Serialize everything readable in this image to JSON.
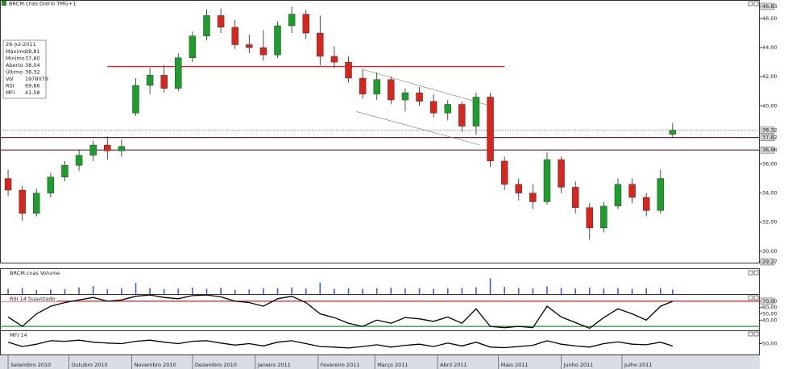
{
  "chart_data": [
    {
      "type": "candlestick",
      "title": "BRCM.cnas Diário TMG+1",
      "x": [
        "2010-09-01",
        "2010-09-08",
        "2010-09-15",
        "2010-09-22",
        "2010-09-29",
        "2010-10-06",
        "2010-10-13",
        "2010-10-20",
        "2010-10-27",
        "2010-11-03",
        "2010-11-10",
        "2010-11-17",
        "2010-11-24",
        "2010-12-01",
        "2010-12-08",
        "2010-12-15",
        "2010-12-22",
        "2010-12-29",
        "2011-01-05",
        "2011-01-12",
        "2011-01-19",
        "2011-01-26",
        "2011-02-02",
        "2011-02-09",
        "2011-02-16",
        "2011-02-23",
        "2011-03-02",
        "2011-03-09",
        "2011-03-16",
        "2011-03-23",
        "2011-03-30",
        "2011-04-06",
        "2011-04-13",
        "2011-04-20",
        "2011-04-27",
        "2011-05-04",
        "2011-05-11",
        "2011-05-18",
        "2011-05-25",
        "2011-06-01",
        "2011-06-08",
        "2011-06-15",
        "2011-06-22",
        "2011-06-29",
        "2011-07-06",
        "2011-07-13",
        "2011-07-20",
        "2011-07-26"
      ],
      "open": [
        35.0,
        34.2,
        32.6,
        34.0,
        35.1,
        35.9,
        36.6,
        37.3,
        36.9,
        39.5,
        41.4,
        42.1,
        41.2,
        43.3,
        44.8,
        46.2,
        45.4,
        44.2,
        44.0,
        43.5,
        45.5,
        46.3,
        45.0,
        43.4,
        43.0,
        41.9,
        40.8,
        41.8,
        40.4,
        40.9,
        40.3,
        39.5,
        40.1,
        38.6,
        40.6,
        36.2,
        34.6,
        34.0,
        33.4,
        36.3,
        34.4,
        33.0,
        31.6,
        33.1,
        34.6,
        33.7,
        32.8,
        38.04
      ],
      "high": [
        35.6,
        34.5,
        34.3,
        35.4,
        36.2,
        37.0,
        37.6,
        37.9,
        37.7,
        41.9,
        42.6,
        42.8,
        43.6,
        45.1,
        46.6,
        46.7,
        45.9,
        44.9,
        45.2,
        45.8,
        46.83,
        46.6,
        46.2,
        44.1,
        43.4,
        42.5,
        42.3,
        42.0,
        41.2,
        41.3,
        40.8,
        40.4,
        40.3,
        40.9,
        40.9,
        36.5,
        35.0,
        34.6,
        36.8,
        36.5,
        34.8,
        33.3,
        33.4,
        35.0,
        35.0,
        34.0,
        35.6,
        38.81
      ],
      "low": [
        33.8,
        32.1,
        32.4,
        33.7,
        34.8,
        35.5,
        36.2,
        36.3,
        36.5,
        39.3,
        40.8,
        40.9,
        41.0,
        43.0,
        44.5,
        45.0,
        43.9,
        43.6,
        43.1,
        43.3,
        45.0,
        44.6,
        42.8,
        42.6,
        41.6,
        40.5,
        40.4,
        40.1,
        39.6,
        40.0,
        39.2,
        39.0,
        38.2,
        38.0,
        35.8,
        34.2,
        33.5,
        32.9,
        33.2,
        34.0,
        32.6,
        30.8,
        31.3,
        32.9,
        33.3,
        32.4,
        32.6,
        37.8
      ],
      "close": [
        34.2,
        32.6,
        34.0,
        35.1,
        35.9,
        36.6,
        37.3,
        36.9,
        37.2,
        41.4,
        42.1,
        41.2,
        43.3,
        44.8,
        46.2,
        45.4,
        44.2,
        44.0,
        43.5,
        45.5,
        46.3,
        45.0,
        43.4,
        43.0,
        41.9,
        40.8,
        41.8,
        40.4,
        40.9,
        40.3,
        39.5,
        40.1,
        38.6,
        40.6,
        36.2,
        34.6,
        34.0,
        33.4,
        36.3,
        34.4,
        33.0,
        31.6,
        33.1,
        34.6,
        33.7,
        32.8,
        35.0,
        38.32
      ],
      "up_color": "#1b9e2a",
      "down_color": "#d8261c",
      "xlim": [
        "2010-08-28",
        "2011-09-07"
      ],
      "xticks": [
        {
          "value": "2010-09-01",
          "label": "Setembro 2010"
        },
        {
          "value": "2010-10-01",
          "label": "Outubro 2010"
        },
        {
          "value": "2010-11-01",
          "label": "Novembro 2010"
        },
        {
          "value": "2010-12-01",
          "label": "Dezembro 2010"
        },
        {
          "value": "2011-01-01",
          "label": "Janeiro 2011"
        },
        {
          "value": "2011-02-01",
          "label": "Fevereiro 2011"
        },
        {
          "value": "2011-03-01",
          "label": "Março 2011"
        },
        {
          "value": "2011-04-01",
          "label": "Abril 2011"
        },
        {
          "value": "2011-05-01",
          "label": "Maio 2011"
        },
        {
          "value": "2011-06-01",
          "label": "Junho 2011"
        },
        {
          "value": "2011-07-01",
          "label": "Julho 2011"
        }
      ],
      "ylim": [
        29.27,
        46.83
      ],
      "yticks": [
        {
          "value": 29.27,
          "label": "29,27"
        },
        {
          "value": 30,
          "label": "30,00"
        },
        {
          "value": 32,
          "label": "32,00"
        },
        {
          "value": 34,
          "label": "34,00"
        },
        {
          "value": 36,
          "label": "36,00"
        },
        {
          "value": 40,
          "label": "40,00"
        },
        {
          "value": 42,
          "label": "42,00"
        },
        {
          "value": 44,
          "label": "44,00"
        },
        {
          "value": 46,
          "label": "46,00"
        },
        {
          "value": 46.83,
          "label": "46,83"
        }
      ],
      "hlines": [
        {
          "value": 38.32,
          "label": "38,32",
          "color": "#777777",
          "dash": true
        },
        {
          "value": 37.82,
          "label": "37,82",
          "color": "#6a1a4a",
          "dash": false
        },
        {
          "value": 36.96,
          "label": "36,96",
          "color": "#6a1a4a",
          "dash": false
        }
      ],
      "segments": [
        {
          "x": [
            "2010-10-20",
            "2011-05-04"
          ],
          "y": [
            42.7,
            42.7
          ],
          "color": "#e02020"
        },
        {
          "x": [
            "2011-02-23",
            "2011-04-27"
          ],
          "y": [
            42.5,
            40.0
          ],
          "color": "#888888"
        },
        {
          "x": [
            "2011-02-20",
            "2011-04-22"
          ],
          "y": [
            39.6,
            37.3
          ],
          "color": "#888888"
        }
      ],
      "info": {
        "date": "26-Jul-2011",
        "rows": [
          [
            "Máximo",
            "38,81"
          ],
          [
            "Mínimo",
            "37,80"
          ],
          [
            "Aberto",
            "38,04"
          ],
          [
            "Último",
            "38,32"
          ],
          [
            "Vol",
            "1978079"
          ],
          [
            "RSI",
            "69,86"
          ],
          [
            "MFI",
            "41,58"
          ]
        ]
      }
    },
    {
      "type": "bar",
      "title": "BRCM.cnas Volume",
      "color": "#3b5fd8",
      "ylim": [
        0,
        8000000
      ],
      "values": [
        2300000,
        2600000,
        1800000,
        2000000,
        2200000,
        2900000,
        3400000,
        2100000,
        2500000,
        4800000,
        2600000,
        2200000,
        2400000,
        2800000,
        2300000,
        2700000,
        1900000,
        2000000,
        2500000,
        2600000,
        2900000,
        2400000,
        4900000,
        2300000,
        2600000,
        2200000,
        2500000,
        2800000,
        2400000,
        2600000,
        2300000,
        2500000,
        2700000,
        2900000,
        6800000,
        3100000,
        2600000,
        2400000,
        3300000,
        2700000,
        2500000,
        2800000,
        2400000,
        2600000,
        2300000,
        2500000,
        2600000,
        1978079
      ]
    },
    {
      "type": "line",
      "title": "RSI 14 Suavizado",
      "color": "#000000",
      "ylim": [
        25,
        75
      ],
      "yticks": [
        {
          "value": 70,
          "label": "70,00"
        },
        {
          "value": 60,
          "label": "60,00"
        },
        {
          "value": 50,
          "label": "50,00"
        },
        {
          "value": 40,
          "label": "40,00"
        }
      ],
      "hlines": [
        {
          "value": 70,
          "color": "#d82020"
        },
        {
          "value": 30,
          "color": "#1b9e2a"
        }
      ],
      "values": [
        45,
        30,
        50,
        62,
        68,
        72,
        76,
        70,
        72,
        78,
        80,
        76,
        74,
        79,
        80,
        77,
        70,
        68,
        62,
        74,
        78,
        68,
        50,
        44,
        35,
        30,
        40,
        35,
        44,
        42,
        38,
        45,
        35,
        58,
        30,
        28,
        30,
        28,
        62,
        45,
        36,
        27,
        44,
        58,
        50,
        40,
        62,
        69.86
      ]
    },
    {
      "type": "line",
      "title": "MFI 14",
      "color": "#000000",
      "ylim": [
        15,
        85
      ],
      "yticks": [
        {
          "value": 50,
          "label": "50,00"
        }
      ],
      "values": [
        55,
        40,
        48,
        60,
        58,
        62,
        55,
        52,
        50,
        58,
        62,
        55,
        50,
        58,
        60,
        52,
        45,
        50,
        42,
        55,
        60,
        50,
        40,
        38,
        35,
        40,
        46,
        38,
        44,
        48,
        40,
        52,
        42,
        55,
        38,
        36,
        40,
        44,
        60,
        48,
        42,
        38,
        50,
        56,
        48,
        46,
        55,
        41.58
      ]
    }
  ]
}
